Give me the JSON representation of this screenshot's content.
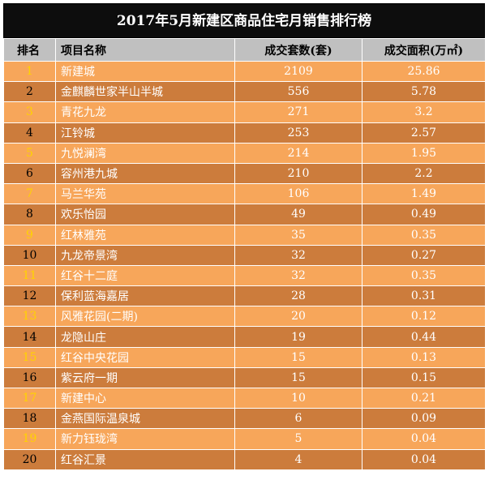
{
  "title": "2017年5月新建区商品住宅月销售排行榜",
  "headers": {
    "rank": "排名",
    "name": "项目名称",
    "units": "成交套数(套)",
    "area": "成交面积(万㎡)"
  },
  "rows": [
    {
      "rank": "1",
      "name": "新建城",
      "units": "2109",
      "area": "25.86"
    },
    {
      "rank": "2",
      "name": "金麒麟世家半山半城",
      "units": "556",
      "area": "5.78"
    },
    {
      "rank": "3",
      "name": "青花九龙",
      "units": "271",
      "area": "3.2"
    },
    {
      "rank": "4",
      "name": "江铃城",
      "units": "253",
      "area": "2.57"
    },
    {
      "rank": "5",
      "name": "九悦澜湾",
      "units": "214",
      "area": "1.95"
    },
    {
      "rank": "6",
      "name": "容州港九城",
      "units": "210",
      "area": "2.2"
    },
    {
      "rank": "7",
      "name": "马兰华苑",
      "units": "106",
      "area": "1.49"
    },
    {
      "rank": "8",
      "name": "欢乐怡园",
      "units": "49",
      "area": "0.49"
    },
    {
      "rank": "9",
      "name": "红林雅苑",
      "units": "35",
      "area": "0.35"
    },
    {
      "rank": "10",
      "name": "九龙帝景湾",
      "units": "32",
      "area": "0.27"
    },
    {
      "rank": "11",
      "name": "红谷十二庭",
      "units": "32",
      "area": "0.35"
    },
    {
      "rank": "12",
      "name": "保利蓝海嘉居",
      "units": "28",
      "area": "0.31"
    },
    {
      "rank": "13",
      "name": "风雅花园(二期)",
      "units": "20",
      "area": "0.12"
    },
    {
      "rank": "14",
      "name": "龙隐山庄",
      "units": "19",
      "area": "0.44"
    },
    {
      "rank": "15",
      "name": "红谷中央花园",
      "units": "15",
      "area": "0.13"
    },
    {
      "rank": "16",
      "name": "紫云府一期",
      "units": "15",
      "area": "0.15"
    },
    {
      "rank": "17",
      "name": "新建中心",
      "units": "10",
      "area": "0.21"
    },
    {
      "rank": "18",
      "name": "金燕国际温泉城",
      "units": "6",
      "area": "0.09"
    },
    {
      "rank": "19",
      "name": "新力钰珑湾",
      "units": "5",
      "area": "0.04"
    },
    {
      "rank": "20",
      "name": "红谷汇景",
      "units": "4",
      "area": "0.04"
    }
  ],
  "colors": {
    "odd_row": "#f7a65a",
    "even_row": "#cc7c3c",
    "header": "#c0c0c0",
    "title_bg": "#0d0d0d",
    "rank_highlight": "#ffd200"
  }
}
